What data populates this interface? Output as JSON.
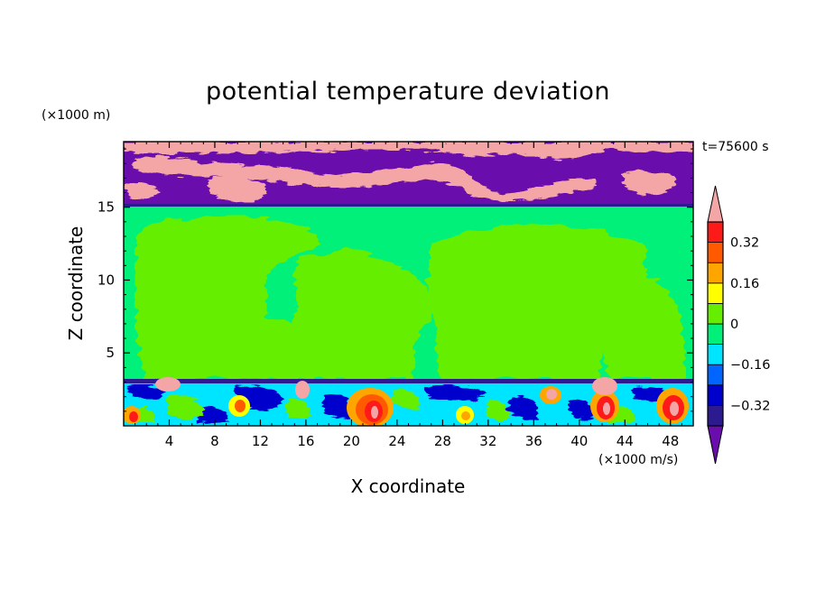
{
  "chart_data": {
    "type": "heatmap",
    "title": "potential temperature deviation",
    "xlabel": "X coordinate",
    "ylabel": "Z coordinate",
    "x_units": "(×1000 m/s)",
    "z_units": "(×1000 m)",
    "time_label": "t=75600 s",
    "xlim": [
      0,
      50
    ],
    "ylim": [
      0,
      19.5
    ],
    "x_ticks": [
      4,
      8,
      12,
      16,
      20,
      24,
      28,
      32,
      36,
      40,
      44,
      48
    ],
    "x_tick_labels": [
      "4",
      "8",
      "12",
      "16",
      "20",
      "24",
      "28",
      "32",
      "36",
      "40",
      "44",
      "48"
    ],
    "y_ticks": [
      5,
      10,
      15
    ],
    "y_tick_labels": [
      "5",
      "10",
      "15"
    ],
    "colorbar": {
      "levels": [
        -0.4,
        -0.32,
        -0.24,
        -0.16,
        -0.08,
        0,
        0.08,
        0.16,
        0.24,
        0.32,
        0.4
      ],
      "tick_labels": [
        "0.32",
        "0.16",
        "0",
        "−0.16",
        "−0.32"
      ],
      "tick_values": [
        0.32,
        0.16,
        0,
        -0.16,
        -0.32
      ],
      "colors": [
        "#6a0dad",
        "#2b1b8f",
        "#0000cd",
        "#0066ff",
        "#00e5ff",
        "#00f07a",
        "#66ee00",
        "#ffff00",
        "#ffa500",
        "#ff5a00",
        "#ff1a1a",
        "#f4a6a6"
      ],
      "extend": "both"
    },
    "regions": {
      "upper_layer": {
        "z_range": [
          15.5,
          19.5
        ],
        "values": "mix of ≤ -0.4 and ≥ 0.4"
      },
      "middle_layer": {
        "z_range": [
          3.3,
          15.5
        ],
        "values": "0 to 0.08 with patches of -0.08 to 0"
      },
      "lower_layer": {
        "z_range": [
          0,
          3.3
        ],
        "values": "highly mixed, -0.4 to 0.4"
      }
    }
  }
}
